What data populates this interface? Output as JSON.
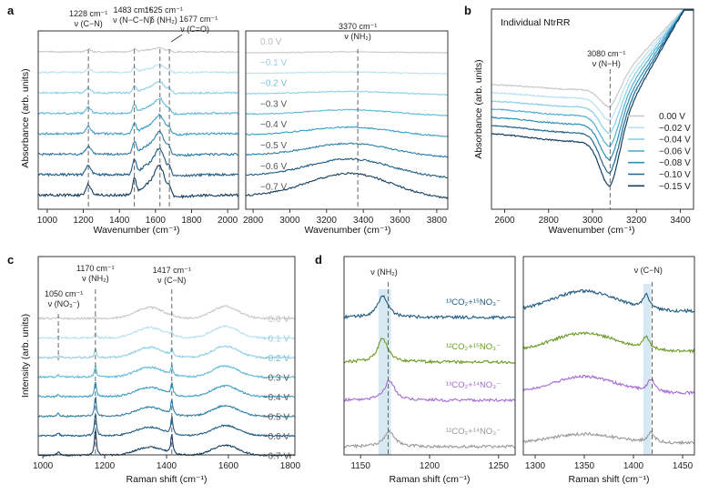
{
  "panel_labels": {
    "a": "a",
    "b": "b",
    "c": "c",
    "d": "d"
  },
  "chart_data": [
    {
      "id": "a1",
      "type": "line",
      "title": "",
      "xlabel": "Wavenumber (cm⁻¹)",
      "ylabel": "Absorbance (arb. units)",
      "xlim": [
        950,
        2060
      ],
      "x_reversed": false,
      "xticks": [
        1000,
        1200,
        1400,
        1600,
        1800,
        2000
      ],
      "xtick_labels": [
        "1000",
        "1200",
        "1400",
        "1600",
        "1800",
        "2000"
      ],
      "series": [
        {
          "name": "0.0 V",
          "color": "#c8c8c8"
        },
        {
          "name": "−0.1 V",
          "color": "#b9e0ef"
        },
        {
          "name": "−0.2 V",
          "color": "#8dcfe6"
        },
        {
          "name": "−0.3 V",
          "color": "#5fb9d8"
        },
        {
          "name": "−0.4 V",
          "color": "#3a9ec4"
        },
        {
          "name": "−0.5 V",
          "color": "#2b7fa8"
        },
        {
          "name": "−0.6 V",
          "color": "#1e5c84"
        },
        {
          "name": "−0.7 V",
          "color": "#163f61"
        }
      ],
      "markers": [
        {
          "x": 1228,
          "wn": "1228 cm⁻¹",
          "mode": "ν (C−N)"
        },
        {
          "x": 1483,
          "wn": "1483 cm⁻¹",
          "mode": "ν (N−C−N)"
        },
        {
          "x": 1625,
          "wn": "1625 cm⁻¹",
          "mode": "δ (NH₂)"
        },
        {
          "x": 1677,
          "wn": "1677 cm⁻¹",
          "mode": "ν (C=O)"
        }
      ]
    },
    {
      "id": "a2",
      "type": "line",
      "xlabel": "Wavenumber (cm⁻¹)",
      "xlim": [
        2760,
        3860
      ],
      "xticks": [
        2800,
        3000,
        3200,
        3400,
        3600,
        3800
      ],
      "xtick_labels": [
        "2800",
        "3000",
        "3200",
        "3400",
        "3600",
        "3800"
      ],
      "voltage_labels": [
        "0.0 V",
        "−0.1 V",
        "−0.2 V",
        "−0.3 V",
        "−0.4 V",
        "−0.5 V",
        "−0.6 V",
        "−0.7 V"
      ],
      "markers": [
        {
          "x": 3370,
          "wn": "3370 cm⁻¹",
          "mode": "ν (NH₂)"
        }
      ]
    },
    {
      "id": "b",
      "type": "line",
      "title": "Individual NtrRR",
      "xlabel": "Wavenumber (cm⁻¹)",
      "ylabel": "Absorbance (arb. units)",
      "xlim": [
        2540,
        3460
      ],
      "xticks": [
        2600,
        2800,
        3000,
        3200,
        3400
      ],
      "xtick_labels": [
        "2600",
        "2800",
        "3000",
        "3200",
        "3400"
      ],
      "series": [
        {
          "name": "0.00 V",
          "color": "#c8c8c8"
        },
        {
          "name": "−0.02 V",
          "color": "#b9e0ef"
        },
        {
          "name": "−0.04 V",
          "color": "#8dcfe6"
        },
        {
          "name": "−0.06 V",
          "color": "#4fb0d4"
        },
        {
          "name": "−0.08 V",
          "color": "#2f8fbc"
        },
        {
          "name": "−0.10 V",
          "color": "#1f6690"
        },
        {
          "name": "−0.15 V",
          "color": "#163f61"
        }
      ],
      "markers": [
        {
          "x": 3080,
          "wn": "3080 cm⁻¹",
          "mode": "ν (N−H)"
        }
      ]
    },
    {
      "id": "c",
      "type": "line",
      "xlabel": "Raman shift (cm⁻¹)",
      "ylabel": "Intensity (arb. units)",
      "xlim": [
        985,
        1815
      ],
      "xticks": [
        1000,
        1200,
        1400,
        1600,
        1800
      ],
      "xtick_labels": [
        "1000",
        "1200",
        "1400",
        "1600",
        "1800"
      ],
      "series": [
        {
          "name": "0.0 V",
          "color": "#c8c8c8"
        },
        {
          "name": "−0.1 V",
          "color": "#b9e0ef"
        },
        {
          "name": "−0.2 V",
          "color": "#8dcfe6"
        },
        {
          "name": "−0.3 V",
          "color": "#5fb9d8"
        },
        {
          "name": "−0.4 V",
          "color": "#3a9ec4"
        },
        {
          "name": "−0.5 V",
          "color": "#2b7fa8"
        },
        {
          "name": "−0.6 V",
          "color": "#1e5c84"
        },
        {
          "name": "−0.7 V",
          "color": "#163f61"
        }
      ],
      "markers": [
        {
          "x": 1050,
          "wn": "1050 cm⁻¹",
          "mode": "ν (NO₃⁻)"
        },
        {
          "x": 1170,
          "wn": "1170 cm⁻¹",
          "mode": "ν (NH₂)"
        },
        {
          "x": 1417,
          "wn": "1417 cm⁻¹",
          "mode": "ν (C−N)"
        }
      ]
    },
    {
      "id": "d1",
      "type": "line",
      "xlabel": "Raman shift (cm⁻¹)",
      "xlim": [
        1138,
        1262
      ],
      "xticks": [
        1150,
        1200,
        1250
      ],
      "xtick_labels": [
        "1150",
        "1200",
        "1250"
      ],
      "mode_label": "ν (NH₂)",
      "series": [
        {
          "name": "¹³CO₂+¹⁵NO₃⁻",
          "color": "#1d5a80"
        },
        {
          "name": "¹²CO₂+¹⁵NO₃⁻",
          "color": "#6b9a22"
        },
        {
          "name": "¹³CO₂+¹⁴NO₃⁻",
          "color": "#a66bd3"
        },
        {
          "name": "¹²CO₂+¹⁴NO₃⁻",
          "color": "#9a9a9a"
        }
      ]
    },
    {
      "id": "d2",
      "type": "line",
      "xlabel": "Raman shift (cm⁻¹)",
      "xlim": [
        1288,
        1462
      ],
      "xticks": [
        1300,
        1350,
        1400,
        1450
      ],
      "xtick_labels": [
        "1300",
        "1350",
        "1400",
        "1450"
      ],
      "mode_label": "ν (C−N)"
    }
  ]
}
